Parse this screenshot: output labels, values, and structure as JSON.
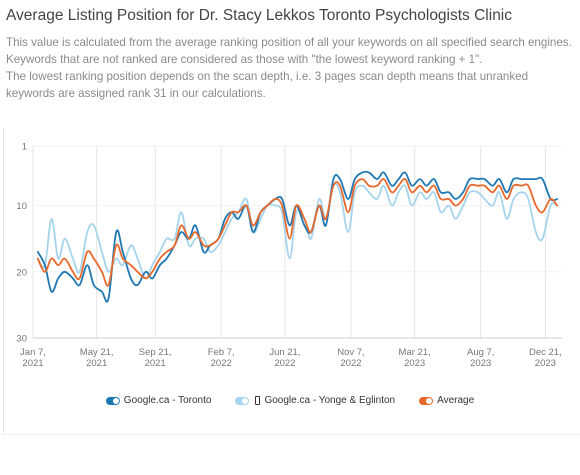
{
  "header": {
    "title": "Average Listing Position for Dr. Stacy Lekkos Toronto Psychologists Clinic",
    "desc_line1": "This value is calculated from the average ranking position of all your keywords on all specified search engines. Keywords that are not ranked are considered as those with \"the lowest keyword ranking + 1\".",
    "desc_line2": "The lowest ranking position depends on the scan depth, i.e. 3 pages scan depth means that unranked keywords are assigned rank 31 in our calculations."
  },
  "chart_data": {
    "type": "line",
    "title": "",
    "xlabel": "",
    "ylabel": "",
    "y_inverted": true,
    "ylim": [
      1,
      30
    ],
    "xlim": [
      "2021-01-07",
      "2024-01-25"
    ],
    "y_ticks": [
      1,
      10,
      20,
      30
    ],
    "x_ticks": [
      {
        "date": "2021-01-07",
        "label": [
          "Jan 7,",
          "2021"
        ]
      },
      {
        "date": "2021-05-21",
        "label": [
          "May 21,",
          "2021"
        ]
      },
      {
        "date": "2021-09-21",
        "label": [
          "Sep 21,",
          "2021"
        ]
      },
      {
        "date": "2022-02-07",
        "label": [
          "Feb 7,",
          "2022"
        ]
      },
      {
        "date": "2022-06-21",
        "label": [
          "Jun 21,",
          "2022"
        ]
      },
      {
        "date": "2022-11-07",
        "label": [
          "Nov 7,",
          "2022"
        ]
      },
      {
        "date": "2023-03-21",
        "label": [
          "Mar 21,",
          "2023"
        ]
      },
      {
        "date": "2023-08-07",
        "label": [
          "Aug 7,",
          "2023"
        ]
      },
      {
        "date": "2023-12-21",
        "label": [
          "Dec 21,",
          "2023"
        ]
      }
    ],
    "grid": "vertical",
    "legend_position": "bottom",
    "series": [
      {
        "name": "Google.ca - Toronto",
        "color": "#1f78b4",
        "points": [
          [
            "2021-01-17",
            17
          ],
          [
            "2021-02-01",
            19
          ],
          [
            "2021-02-15",
            23
          ],
          [
            "2021-03-01",
            21
          ],
          [
            "2021-03-15",
            20
          ],
          [
            "2021-04-01",
            21
          ],
          [
            "2021-04-15",
            22
          ],
          [
            "2021-05-01",
            19
          ],
          [
            "2021-05-15",
            22
          ],
          [
            "2021-06-01",
            23
          ],
          [
            "2021-06-15",
            24
          ],
          [
            "2021-07-01",
            14
          ],
          [
            "2021-07-15",
            17
          ],
          [
            "2021-08-01",
            21
          ],
          [
            "2021-08-15",
            22
          ],
          [
            "2021-09-01",
            20
          ],
          [
            "2021-09-15",
            21
          ],
          [
            "2021-10-01",
            19
          ],
          [
            "2021-10-15",
            18
          ],
          [
            "2021-11-01",
            16
          ],
          [
            "2021-11-15",
            14
          ],
          [
            "2021-12-01",
            15
          ],
          [
            "2021-12-15",
            13
          ],
          [
            "2022-01-01",
            17
          ],
          [
            "2022-01-15",
            16
          ],
          [
            "2022-02-01",
            15
          ],
          [
            "2022-02-15",
            12
          ],
          [
            "2022-03-01",
            11
          ],
          [
            "2022-03-15",
            12
          ],
          [
            "2022-04-01",
            10
          ],
          [
            "2022-04-15",
            14
          ],
          [
            "2022-05-01",
            11
          ],
          [
            "2022-05-15",
            10
          ],
          [
            "2022-06-01",
            9
          ],
          [
            "2022-06-15",
            9
          ],
          [
            "2022-07-01",
            13
          ],
          [
            "2022-07-15",
            10
          ],
          [
            "2022-08-01",
            13
          ],
          [
            "2022-08-15",
            14
          ],
          [
            "2022-09-01",
            10
          ],
          [
            "2022-09-15",
            13
          ],
          [
            "2022-10-01",
            6
          ],
          [
            "2022-10-15",
            6
          ],
          [
            "2022-11-01",
            9
          ],
          [
            "2022-11-15",
            6
          ],
          [
            "2022-12-01",
            5
          ],
          [
            "2022-12-15",
            5
          ],
          [
            "2023-01-01",
            6
          ],
          [
            "2023-01-15",
            5
          ],
          [
            "2023-02-01",
            7
          ],
          [
            "2023-02-15",
            6
          ],
          [
            "2023-03-01",
            5
          ],
          [
            "2023-03-15",
            7
          ],
          [
            "2023-04-01",
            6
          ],
          [
            "2023-04-15",
            7
          ],
          [
            "2023-05-01",
            6
          ],
          [
            "2023-05-15",
            8
          ],
          [
            "2023-06-01",
            8
          ],
          [
            "2023-06-15",
            9
          ],
          [
            "2023-07-01",
            8
          ],
          [
            "2023-07-15",
            6
          ],
          [
            "2023-08-01",
            6
          ],
          [
            "2023-08-15",
            6
          ],
          [
            "2023-09-01",
            7
          ],
          [
            "2023-09-15",
            6
          ],
          [
            "2023-10-01",
            8
          ],
          [
            "2023-10-15",
            6
          ],
          [
            "2023-11-01",
            6
          ],
          [
            "2023-11-15",
            6
          ],
          [
            "2023-12-01",
            6
          ],
          [
            "2023-12-15",
            6
          ],
          [
            "2024-01-01",
            9
          ],
          [
            "2024-01-15",
            9
          ]
        ]
      },
      {
        "name": "Google.ca - Yonge & Eglinton",
        "color": "#a6d4ec",
        "points": [
          [
            "2021-01-17",
            18
          ],
          [
            "2021-02-01",
            19
          ],
          [
            "2021-02-15",
            12
          ],
          [
            "2021-03-01",
            18
          ],
          [
            "2021-03-15",
            15
          ],
          [
            "2021-04-01",
            18
          ],
          [
            "2021-04-15",
            20
          ],
          [
            "2021-05-01",
            14
          ],
          [
            "2021-05-15",
            13
          ],
          [
            "2021-06-01",
            17
          ],
          [
            "2021-06-15",
            20
          ],
          [
            "2021-07-01",
            18
          ],
          [
            "2021-07-15",
            19
          ],
          [
            "2021-08-01",
            16
          ],
          [
            "2021-08-15",
            18
          ],
          [
            "2021-09-01",
            21
          ],
          [
            "2021-09-15",
            19
          ],
          [
            "2021-10-01",
            17
          ],
          [
            "2021-10-15",
            15
          ],
          [
            "2021-11-01",
            15
          ],
          [
            "2021-11-15",
            11
          ],
          [
            "2021-12-01",
            16
          ],
          [
            "2021-12-15",
            15
          ],
          [
            "2022-01-01",
            15
          ],
          [
            "2022-01-15",
            17
          ],
          [
            "2022-02-01",
            16
          ],
          [
            "2022-02-15",
            14
          ],
          [
            "2022-03-01",
            12
          ],
          [
            "2022-03-15",
            11
          ],
          [
            "2022-04-01",
            9
          ],
          [
            "2022-04-15",
            14
          ],
          [
            "2022-05-01",
            12
          ],
          [
            "2022-05-15",
            10
          ],
          [
            "2022-06-01",
            10
          ],
          [
            "2022-06-15",
            11
          ],
          [
            "2022-07-01",
            18
          ],
          [
            "2022-07-15",
            11
          ],
          [
            "2022-08-01",
            12
          ],
          [
            "2022-08-15",
            15
          ],
          [
            "2022-09-01",
            9
          ],
          [
            "2022-09-15",
            12
          ],
          [
            "2022-10-01",
            7
          ],
          [
            "2022-10-15",
            8
          ],
          [
            "2022-11-01",
            14
          ],
          [
            "2022-11-15",
            8
          ],
          [
            "2022-12-01",
            7
          ],
          [
            "2022-12-15",
            8
          ],
          [
            "2023-01-01",
            9
          ],
          [
            "2023-01-15",
            7
          ],
          [
            "2023-02-01",
            10
          ],
          [
            "2023-02-15",
            8
          ],
          [
            "2023-03-01",
            7
          ],
          [
            "2023-03-15",
            10
          ],
          [
            "2023-04-01",
            8
          ],
          [
            "2023-04-15",
            9
          ],
          [
            "2023-05-01",
            8
          ],
          [
            "2023-05-15",
            11
          ],
          [
            "2023-06-01",
            10
          ],
          [
            "2023-06-15",
            12
          ],
          [
            "2023-07-01",
            10
          ],
          [
            "2023-07-15",
            8
          ],
          [
            "2023-08-01",
            8
          ],
          [
            "2023-08-15",
            9
          ],
          [
            "2023-09-01",
            10
          ],
          [
            "2023-09-15",
            8
          ],
          [
            "2023-10-01",
            12
          ],
          [
            "2023-10-15",
            9
          ],
          [
            "2023-11-01",
            8
          ],
          [
            "2023-11-15",
            9
          ],
          [
            "2023-12-01",
            14
          ],
          [
            "2023-12-15",
            15
          ],
          [
            "2024-01-01",
            10
          ],
          [
            "2024-01-15",
            10
          ]
        ]
      },
      {
        "name": "Average",
        "color": "#e8692c",
        "points": [
          [
            "2021-01-17",
            18
          ],
          [
            "2021-02-01",
            20
          ],
          [
            "2021-02-15",
            18
          ],
          [
            "2021-03-01",
            19
          ],
          [
            "2021-03-15",
            18
          ],
          [
            "2021-04-01",
            20
          ],
          [
            "2021-04-15",
            21
          ],
          [
            "2021-05-01",
            17
          ],
          [
            "2021-05-15",
            18
          ],
          [
            "2021-06-01",
            20
          ],
          [
            "2021-06-15",
            22
          ],
          [
            "2021-07-01",
            16
          ],
          [
            "2021-07-15",
            18
          ],
          [
            "2021-08-01",
            19
          ],
          [
            "2021-08-15",
            20
          ],
          [
            "2021-09-01",
            21
          ],
          [
            "2021-09-15",
            20
          ],
          [
            "2021-10-01",
            18
          ],
          [
            "2021-10-15",
            17
          ],
          [
            "2021-11-01",
            16
          ],
          [
            "2021-11-15",
            13
          ],
          [
            "2021-12-01",
            15
          ],
          [
            "2021-12-15",
            14
          ],
          [
            "2022-01-01",
            16
          ],
          [
            "2022-01-15",
            16
          ],
          [
            "2022-02-01",
            15
          ],
          [
            "2022-02-15",
            13
          ],
          [
            "2022-03-01",
            11
          ],
          [
            "2022-03-15",
            11
          ],
          [
            "2022-04-01",
            10
          ],
          [
            "2022-04-15",
            13
          ],
          [
            "2022-05-01",
            11
          ],
          [
            "2022-05-15",
            10
          ],
          [
            "2022-06-01",
            9
          ],
          [
            "2022-06-15",
            10
          ],
          [
            "2022-07-01",
            15
          ],
          [
            "2022-07-15",
            10
          ],
          [
            "2022-08-01",
            12
          ],
          [
            "2022-08-15",
            14
          ],
          [
            "2022-09-01",
            10
          ],
          [
            "2022-09-15",
            12
          ],
          [
            "2022-10-01",
            7
          ],
          [
            "2022-10-15",
            7
          ],
          [
            "2022-11-01",
            11
          ],
          [
            "2022-11-15",
            7
          ],
          [
            "2022-12-01",
            6
          ],
          [
            "2022-12-15",
            7
          ],
          [
            "2023-01-01",
            7
          ],
          [
            "2023-01-15",
            6
          ],
          [
            "2023-02-01",
            8
          ],
          [
            "2023-02-15",
            7
          ],
          [
            "2023-03-01",
            6
          ],
          [
            "2023-03-15",
            8
          ],
          [
            "2023-04-01",
            7
          ],
          [
            "2023-04-15",
            8
          ],
          [
            "2023-05-01",
            7
          ],
          [
            "2023-05-15",
            9
          ],
          [
            "2023-06-01",
            9
          ],
          [
            "2023-06-15",
            10
          ],
          [
            "2023-07-01",
            9
          ],
          [
            "2023-07-15",
            7
          ],
          [
            "2023-08-01",
            7
          ],
          [
            "2023-08-15",
            7
          ],
          [
            "2023-09-01",
            8
          ],
          [
            "2023-09-15",
            7
          ],
          [
            "2023-10-01",
            9
          ],
          [
            "2023-10-15",
            7
          ],
          [
            "2023-11-01",
            7
          ],
          [
            "2023-11-15",
            7
          ],
          [
            "2023-12-01",
            10
          ],
          [
            "2023-12-15",
            11
          ],
          [
            "2024-01-01",
            9
          ],
          [
            "2024-01-15",
            10
          ]
        ]
      }
    ]
  },
  "legend": {
    "items": [
      {
        "label": "Google.ca - Toronto",
        "color": "#1f78b4",
        "icon": "toggle-icon"
      },
      {
        "label": "Google.ca - Yonge & Eglinton",
        "color": "#a6d4ec",
        "icon": "toggle-icon",
        "extra_icon": "phone-icon"
      },
      {
        "label": "Average",
        "color": "#e8692c",
        "icon": "toggle-icon"
      }
    ]
  }
}
